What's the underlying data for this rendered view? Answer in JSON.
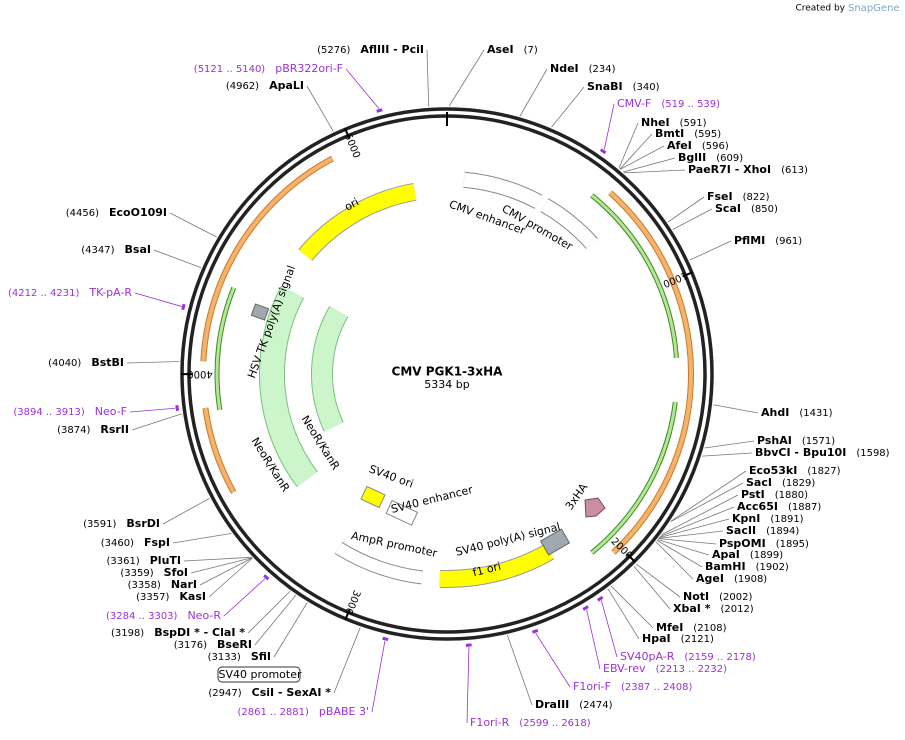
{
  "header": {
    "credit_prefix": "Created by",
    "credit_brand": "SnapGene"
  },
  "map": {
    "title": "CMV PGK1-3xHA",
    "size": "5334 bp",
    "ticks": [
      "1000",
      "2000",
      "3000",
      "4000",
      "5000"
    ],
    "enzymes": [
      {
        "name": "AseI",
        "position": "(7)"
      },
      {
        "name": "NdeI",
        "position": "(234)"
      },
      {
        "name": "SnaBI",
        "position": "(340)"
      },
      {
        "name": "NheI",
        "position": "(591)"
      },
      {
        "name": "BmtI",
        "position": "(595)"
      },
      {
        "name": "AfeI",
        "position": "(596)"
      },
      {
        "name": "BglII",
        "position": "(609)"
      },
      {
        "name": "PaeR7I  - XhoI",
        "position": "(613)"
      },
      {
        "name": "FseI",
        "position": "(822)"
      },
      {
        "name": "ScaI",
        "position": "(850)"
      },
      {
        "name": "PflMI",
        "position": "(961)"
      },
      {
        "name": "AhdI",
        "position": "(1431)"
      },
      {
        "name": "PshAI",
        "position": "(1571)"
      },
      {
        "name": "BbvCI  - Bpu10I",
        "position": "(1598)"
      },
      {
        "name": "Eco53kI",
        "position": "(1827)"
      },
      {
        "name": "SacI",
        "position": "(1829)"
      },
      {
        "name": "PstI",
        "position": "(1880)"
      },
      {
        "name": "Acc65I",
        "position": "(1887)"
      },
      {
        "name": "KpnI",
        "position": "(1891)"
      },
      {
        "name": "SacII",
        "position": "(1894)"
      },
      {
        "name": "PspOMI",
        "position": "(1895)"
      },
      {
        "name": "ApaI",
        "position": "(1899)"
      },
      {
        "name": "BamHI",
        "position": "(1902)"
      },
      {
        "name": "AgeI",
        "position": "(1908)"
      },
      {
        "name": "NotI",
        "position": "(2002)"
      },
      {
        "name": "XbaI *",
        "position": "(2012)"
      },
      {
        "name": "MfeI",
        "position": "(2108)"
      },
      {
        "name": "HpaI",
        "position": "(2121)"
      },
      {
        "name": "DraIII",
        "position": "(2474)"
      },
      {
        "name": "AflIII  - PciI",
        "position": "(5276)"
      },
      {
        "name": "ApaLI",
        "position": "(4962)"
      },
      {
        "name": "EcoO109I",
        "position": "(4456)"
      },
      {
        "name": "BsaI",
        "position": "(4347)"
      },
      {
        "name": "BstBI",
        "position": "(4040)"
      },
      {
        "name": "RsrII",
        "position": "(3874)"
      },
      {
        "name": "BsrDI",
        "position": "(3591)"
      },
      {
        "name": "FspI",
        "position": "(3460)"
      },
      {
        "name": "PluTI",
        "position": "(3361)"
      },
      {
        "name": "SfoI",
        "position": "(3359)"
      },
      {
        "name": "NarI",
        "position": "(3358)"
      },
      {
        "name": "KasI",
        "position": "(3357)"
      },
      {
        "name": "BspDI *  - ClaI *",
        "position": "(3198)"
      },
      {
        "name": "BseRI",
        "position": "(3176)"
      },
      {
        "name": "SfiI",
        "position": "(3133)"
      },
      {
        "name": "CsiI  - SexAI *",
        "position": "(2947)"
      }
    ],
    "primers": [
      {
        "name": "CMV-F",
        "range": "(519 .. 539)"
      },
      {
        "name": "SV40pA-R",
        "range": "(2159 .. 2178)"
      },
      {
        "name": "EBV-rev",
        "range": "(2213 .. 2232)"
      },
      {
        "name": "F1ori-F",
        "range": "(2387 .. 2408)"
      },
      {
        "name": "F1ori-R",
        "range": "(2599 .. 2618)"
      },
      {
        "name": "pBR322ori-F",
        "range": "(5121 .. 5140)"
      },
      {
        "name": "TK-pA-R",
        "range": "(4212 .. 4231)"
      },
      {
        "name": "Neo-F",
        "range": "(3894 .. 3913)"
      },
      {
        "name": "Neo-R",
        "range": "(3284 .. 3303)"
      },
      {
        "name": "pBABE 3'",
        "range": "(2861 .. 2881)"
      }
    ],
    "features": [
      "ori",
      "CMV enhancer",
      "CMV promoter",
      "HSV TK poly(A) signal",
      "NeoR/KanR",
      "NeoR/KanR",
      "SV40 ori",
      "SV40 enhancer",
      "AmpR promoter",
      "SV40 poly(A) signal",
      "f1 ori",
      "3xHA",
      "SV40 promoter"
    ]
  }
}
